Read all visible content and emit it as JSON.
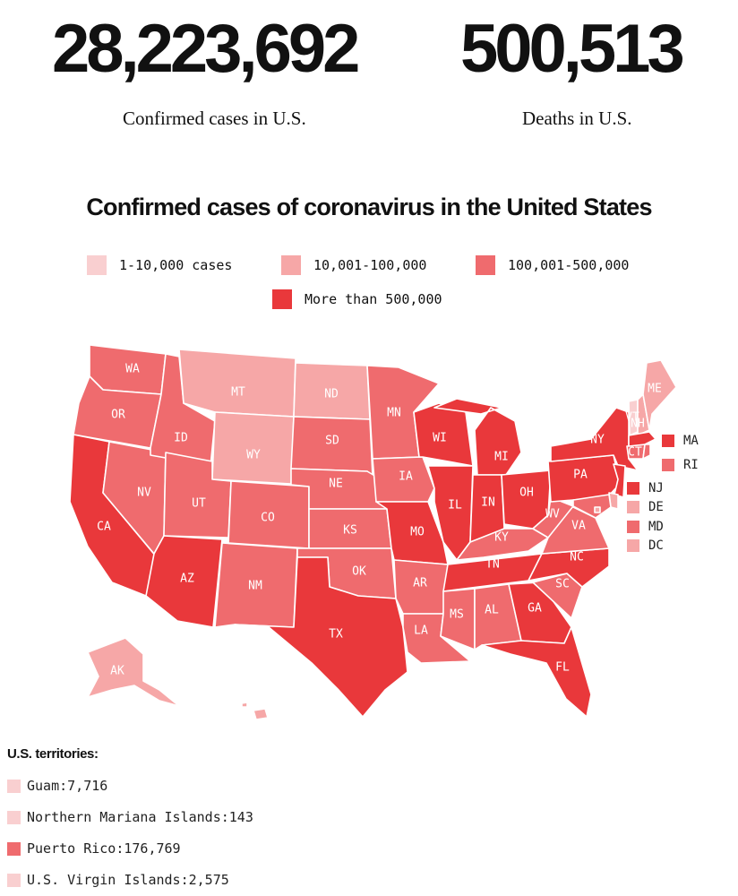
{
  "colors": {
    "tier1": "#f9cfd0",
    "tier2": "#f6a7a7",
    "tier3": "#ef6b6e",
    "tier4": "#e9383b"
  },
  "stats": {
    "cases_value": "28,223,692",
    "cases_label": "Confirmed cases in U.S.",
    "deaths_value": "500,513",
    "deaths_label": "Deaths in U.S."
  },
  "map": {
    "title": "Confirmed cases of coronavirus in the United States",
    "legend": [
      {
        "label": "1-10,000 cases",
        "tier": "tier1"
      },
      {
        "label": "10,001-100,000",
        "tier": "tier2"
      },
      {
        "label": "100,001-500,000",
        "tier": "tier3"
      },
      {
        "label": "More than 500,000",
        "tier": "tier4"
      }
    ],
    "states": {
      "WA": "tier3",
      "OR": "tier3",
      "CA": "tier4",
      "ID": "tier3",
      "NV": "tier3",
      "MT": "tier2",
      "WY": "tier2",
      "UT": "tier3",
      "AZ": "tier4",
      "CO": "tier3",
      "NM": "tier3",
      "ND": "tier2",
      "SD": "tier3",
      "NE": "tier3",
      "KS": "tier3",
      "OK": "tier3",
      "TX": "tier4",
      "MN": "tier3",
      "IA": "tier3",
      "MO": "tier4",
      "AR": "tier3",
      "LA": "tier3",
      "WI": "tier4",
      "IL": "tier4",
      "MI": "tier4",
      "IN": "tier4",
      "OH": "tier4",
      "KY": "tier3",
      "TN": "tier4",
      "MS": "tier3",
      "AL": "tier3",
      "GA": "tier4",
      "FL": "tier4",
      "SC": "tier3",
      "NC": "tier4",
      "VA": "tier3",
      "WV": "tier3",
      "PA": "tier4",
      "NY": "tier4",
      "VT": "tier1",
      "NH": "tier2",
      "ME": "tier2",
      "CT": "tier3",
      "AK": "tier2",
      "HI": "tier2",
      "MA": "tier4",
      "RI": "tier3",
      "NJ": "tier4",
      "DE": "tier2",
      "MD": "tier3",
      "DC": "tier2"
    },
    "labels": {
      "WA": "WA",
      "OR": "OR",
      "CA": "CA",
      "ID": "ID",
      "NV": "NV",
      "MT": "MT",
      "WY": "WY",
      "UT": "UT",
      "AZ": "AZ",
      "CO": "CO",
      "NM": "NM",
      "ND": "ND",
      "SD": "SD",
      "NE": "NE",
      "KS": "KS",
      "OK": "OK",
      "TX": "TX",
      "MN": "MN",
      "IA": "IA",
      "MO": "MO",
      "AR": "AR",
      "LA": "LA",
      "WI": "WI",
      "IL": "IL",
      "MI": "MI",
      "IN": "IN",
      "OH": "OH",
      "KY": "KY",
      "TN": "TN",
      "MS": "MS",
      "AL": "AL",
      "GA": "GA",
      "FL": "FL",
      "SC": "SC",
      "NC": "NC",
      "VA": "VA",
      "WV": "WV",
      "PA": "PA",
      "NY": "NY",
      "VT": "VT",
      "NH": "NH",
      "ME": "ME",
      "CT": "CT",
      "AK": "AK"
    },
    "small_states": [
      {
        "code": "MA",
        "tier": "tier4"
      },
      {
        "code": "RI",
        "tier": "tier3"
      },
      {
        "code": "NJ",
        "tier": "tier4"
      },
      {
        "code": "DE",
        "tier": "tier2"
      },
      {
        "code": "MD",
        "tier": "tier3"
      },
      {
        "code": "DC",
        "tier": "tier2"
      }
    ]
  },
  "territories": {
    "title": "U.S. territories:",
    "items": [
      {
        "text": "Guam:7,716",
        "tier": "tier1"
      },
      {
        "text": "Northern Mariana Islands:143",
        "tier": "tier1"
      },
      {
        "text": "Puerto Rico:176,769",
        "tier": "tier3"
      },
      {
        "text": "U.S. Virgin Islands:2,575",
        "tier": "tier1"
      }
    ]
  }
}
